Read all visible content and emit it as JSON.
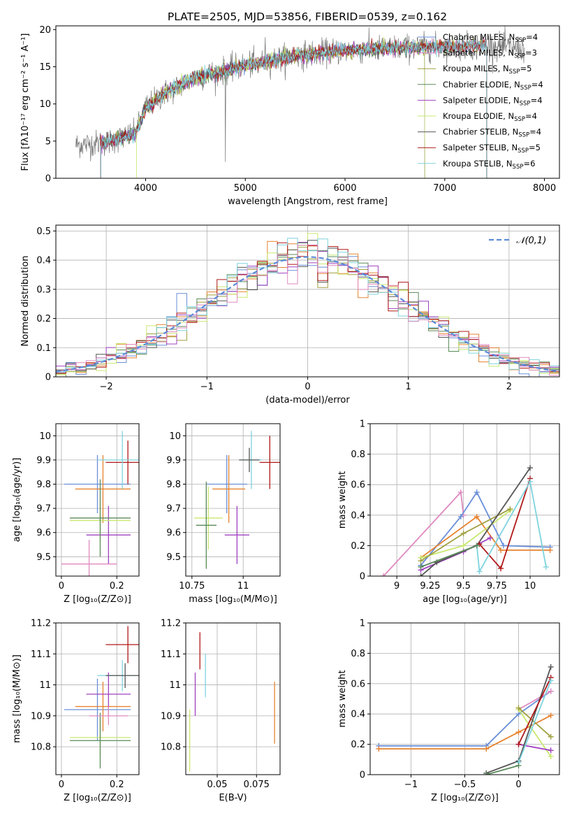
{
  "figure_title": "PLATE=2505, MJD=53856, FIBERID=0539, z=0.162",
  "model_colors": [
    "#6a8fd8",
    "#e68330",
    "#a0a040",
    "#5a8a5a",
    "#a040c0",
    "#c8e870",
    "#555555",
    "#b01818",
    "#7ed3de",
    "#e08ac0"
  ],
  "chart_data": [
    {
      "id": "spectrum",
      "type": "line",
      "title": "PLATE=2505, MJD=53856, FIBERID=0539, z=0.162",
      "xlabel": "wavelength [Angstrom, rest frame]",
      "ylabel": "Flux [fλ10⁻¹⁷ erg cm⁻² s⁻¹ A⁻¹]",
      "xlim": [
        3100,
        8150
      ],
      "ylim": [
        0,
        20.5
      ],
      "xticks": [
        4000,
        5000,
        6000,
        7000,
        8000
      ],
      "yticks": [
        0,
        5,
        10,
        15,
        20
      ],
      "legend_position": "right",
      "continuum": {
        "x": [
          3300,
          3600,
          3900,
          4000,
          4200,
          4500,
          5000,
          5500,
          6000,
          6500,
          7000,
          7400,
          7800
        ],
        "y": [
          4.5,
          4.8,
          6.0,
          9.5,
          11.5,
          13.5,
          15.2,
          16.5,
          17.2,
          17.5,
          17.7,
          17.8,
          17.5
        ]
      },
      "model_range": [
        3550,
        7420
      ],
      "series": [
        {
          "name": "Chabrier MILES, N",
          "sub": "SSP",
          "suffix": "=4",
          "color": "#6a8fd8"
        },
        {
          "name": "Salpeter MILES, N",
          "sub": "SSP",
          "suffix": "=3",
          "color": "#e08ac0"
        },
        {
          "name": "Kroupa MILES, N",
          "sub": "SSP",
          "suffix": "=5",
          "color": "#a0a040"
        },
        {
          "name": "Chabrier ELODIE, N",
          "sub": "SSP",
          "suffix": "=4",
          "color": "#5a8a5a"
        },
        {
          "name": "Salpeter ELODIE, N",
          "sub": "SSP",
          "suffix": "=4",
          "color": "#a040c0"
        },
        {
          "name": "Kroupa ELODIE, N",
          "sub": "SSP",
          "suffix": "=4",
          "color": "#c8e870"
        },
        {
          "name": "Chabrier STELIB, N",
          "sub": "SSP",
          "suffix": "=4",
          "color": "#555555"
        },
        {
          "name": "Salpeter STELIB, N",
          "sub": "SSP",
          "suffix": "=5",
          "color": "#b01818"
        },
        {
          "name": "Kroupa STELIB, N",
          "sub": "SSP",
          "suffix": "=6",
          "color": "#7ed3de"
        }
      ]
    },
    {
      "id": "residuals",
      "type": "line",
      "xlabel": "(data-model)/error",
      "ylabel": "Normed distribution",
      "xlim": [
        -2.5,
        2.5
      ],
      "ylim": [
        0,
        0.52
      ],
      "xticks": [
        -2,
        -1,
        0,
        1,
        2
      ],
      "yticks": [
        0.0,
        0.1,
        0.2,
        0.3,
        0.4,
        0.5
      ],
      "bin_width": 0.1,
      "grid": true,
      "legend": {
        "label": "𝒩(0,1)",
        "position": "top-right",
        "color": "#5b8bd8"
      }
    },
    {
      "id": "age_Z",
      "type": "scatter",
      "xlabel": "Z [log₁₀(Z/Z⊙)]",
      "ylabel": "age  [log₁₀(age/yr)]",
      "xlim": [
        -0.02,
        0.28
      ],
      "ylim": [
        9.42,
        10.05
      ],
      "xticks": [
        0.0,
        0.2
      ],
      "yticks": [
        9.5,
        9.6,
        9.7,
        9.8,
        9.9,
        10.0
      ],
      "grid": true,
      "points": [
        {
          "color": "#6a8fd8",
          "x": 0.13,
          "xerr": 0.12,
          "y": 9.8,
          "yerr": 0.12
        },
        {
          "color": "#e68330",
          "x": 0.15,
          "xerr": 0.1,
          "y": 9.78,
          "yerr": 0.14
        },
        {
          "color": "#b01818",
          "x": 0.24,
          "xerr": 0.08,
          "y": 9.89,
          "yerr": 0.09
        },
        {
          "color": "#7ed3de",
          "x": 0.22,
          "xerr": 0.09,
          "y": 9.9,
          "yerr": 0.12
        },
        {
          "color": "#a040c0",
          "x": 0.17,
          "xerr": 0.08,
          "y": 9.59,
          "yerr": 0.12
        },
        {
          "color": "#c8e870",
          "x": 0.14,
          "xerr": 0.11,
          "y": 9.65,
          "yerr": 0.09
        },
        {
          "color": "#5a8a5a",
          "x": 0.14,
          "xerr": 0.11,
          "y": 9.66,
          "yerr": 0.16
        },
        {
          "color": "#e08ac0",
          "x": 0.1,
          "xerr": 0.1,
          "y": 9.47,
          "yerr": 0.1
        }
      ]
    },
    {
      "id": "age_mass",
      "type": "scatter",
      "xlabel": "mass [log₁₀(M/M⊙)]",
      "ylabel": "",
      "xlim": [
        10.72,
        11.18
      ],
      "ylim": [
        9.42,
        10.05
      ],
      "xticks": [
        10.75,
        11.0
      ],
      "yticks": [
        9.5,
        9.6,
        9.7,
        9.8,
        9.9,
        10.0
      ],
      "grid": true,
      "points": [
        {
          "color": "#6a8fd8",
          "x": 10.92,
          "xerr": 0.1,
          "y": 9.8,
          "yerr": 0.12
        },
        {
          "color": "#e68330",
          "x": 10.93,
          "xerr": 0.08,
          "y": 9.78,
          "yerr": 0.14
        },
        {
          "color": "#b01818",
          "x": 11.13,
          "xerr": 0.05,
          "y": 9.89,
          "yerr": 0.11
        },
        {
          "color": "#7ed3de",
          "x": 11.04,
          "xerr": 0.05,
          "y": 9.9,
          "yerr": 0.12
        },
        {
          "color": "#a040c0",
          "x": 10.97,
          "xerr": 0.06,
          "y": 9.59,
          "yerr": 0.12
        },
        {
          "color": "#c8e870",
          "x": 10.83,
          "xerr": 0.07,
          "y": 9.66,
          "yerr": 0.13
        },
        {
          "color": "#5a8a5a",
          "x": 10.82,
          "xerr": 0.05,
          "y": 9.63,
          "yerr": 0.18
        },
        {
          "color": "#555555",
          "x": 11.03,
          "xerr": 0.05,
          "y": 9.9,
          "yerr": 0.05
        }
      ]
    },
    {
      "id": "weight_age",
      "type": "line",
      "xlabel": "age  [log₁₀(age/yr)]",
      "ylabel": "mass weight",
      "xlim": [
        8.8,
        10.22
      ],
      "ylim": [
        0,
        1.0
      ],
      "xticks": [
        9.0,
        9.25,
        9.5,
        9.75,
        10.0
      ],
      "yticks": [
        0.0,
        0.2,
        0.4,
        0.6,
        0.8,
        1.0
      ],
      "grid": true,
      "series": [
        {
          "color": "#e08ac0",
          "x": [
            8.9,
            9.48,
            9.5
          ],
          "y": [
            0.0,
            0.55,
            0.4
          ]
        },
        {
          "color": "#6a8fd8",
          "x": [
            9.18,
            9.48,
            9.6,
            9.8,
            10.15
          ],
          "y": [
            0.07,
            0.39,
            0.55,
            0.2,
            0.19
          ]
        },
        {
          "color": "#e68330",
          "x": [
            9.18,
            9.6,
            9.78,
            10.15
          ],
          "y": [
            0.12,
            0.39,
            0.17,
            0.17
          ]
        },
        {
          "color": "#c8e870",
          "x": [
            9.18,
            9.5,
            9.85
          ],
          "y": [
            0.12,
            0.2,
            0.43
          ]
        },
        {
          "color": "#a0a040",
          "x": [
            9.18,
            9.5,
            9.85
          ],
          "y": [
            0.1,
            0.28,
            0.44
          ]
        },
        {
          "color": "#a040c0",
          "x": [
            9.18,
            9.5,
            9.7
          ],
          "y": [
            0.04,
            0.16,
            0.25
          ]
        },
        {
          "color": "#555555",
          "x": [
            9.18,
            9.3,
            9.6,
            10.0
          ],
          "y": [
            0.0,
            0.09,
            0.2,
            0.71
          ]
        },
        {
          "color": "#b01818",
          "x": [
            9.62,
            9.78,
            10.0
          ],
          "y": [
            0.21,
            0.05,
            0.64
          ]
        },
        {
          "color": "#7ed3de",
          "x": [
            9.6,
            9.62,
            10.0,
            10.12
          ],
          "y": [
            0.2,
            0.03,
            0.62,
            0.06
          ]
        },
        {
          "color": "#5a8a5a",
          "x": [
            9.18,
            9.6
          ],
          "y": [
            0.06,
            0.2
          ]
        }
      ]
    },
    {
      "id": "mass_Z",
      "type": "scatter",
      "xlabel": "Z [log₁₀(Z/Z⊙)]",
      "ylabel": "mass [log₁₀(M/M⊙)]",
      "xlim": [
        -0.02,
        0.28
      ],
      "ylim": [
        10.71,
        11.2
      ],
      "xticks": [
        0.0,
        0.2
      ],
      "yticks": [
        10.8,
        10.9,
        11.0,
        11.1,
        11.2
      ],
      "grid": true,
      "points": [
        {
          "color": "#6a8fd8",
          "x": 0.13,
          "xerr": 0.12,
          "y": 10.92,
          "yerr": 0.1
        },
        {
          "color": "#e68330",
          "x": 0.15,
          "xerr": 0.1,
          "y": 10.93,
          "yerr": 0.08
        },
        {
          "color": "#b01818",
          "x": 0.24,
          "xerr": 0.08,
          "y": 11.13,
          "yerr": 0.06
        },
        {
          "color": "#7ed3de",
          "x": 0.22,
          "xerr": 0.09,
          "y": 11.03,
          "yerr": 0.05
        },
        {
          "color": "#a040c0",
          "x": 0.17,
          "xerr": 0.08,
          "y": 10.97,
          "yerr": 0.07
        },
        {
          "color": "#c8e870",
          "x": 0.14,
          "xerr": 0.11,
          "y": 10.83,
          "yerr": 0.06
        },
        {
          "color": "#5a8a5a",
          "x": 0.14,
          "xerr": 0.11,
          "y": 10.82,
          "yerr": 0.09
        },
        {
          "color": "#555555",
          "x": 0.23,
          "xerr": 0.07,
          "y": 11.03,
          "yerr": 0.04
        },
        {
          "color": "#e08ac0",
          "x": 0.17,
          "xerr": 0.07,
          "y": 10.9,
          "yerr": 0.03
        }
      ]
    },
    {
      "id": "mass_ebv",
      "type": "scatter",
      "xlabel": "E(B-V)",
      "ylabel": "",
      "xlim": [
        0.03,
        0.09
      ],
      "ylim": [
        10.71,
        11.2
      ],
      "xticks": [
        0.05,
        0.075
      ],
      "yticks": [
        10.8,
        10.9,
        11.0,
        11.1,
        11.2
      ],
      "grid": true,
      "points": [
        {
          "color": "#c8e870",
          "x": 0.0325,
          "xerr": 0,
          "y": 10.82,
          "yerr": 0.1
        },
        {
          "color": "#a040c0",
          "x": 0.036,
          "xerr": 0,
          "y": 10.97,
          "yerr": 0.07
        },
        {
          "color": "#b01818",
          "x": 0.039,
          "xerr": 0,
          "y": 11.11,
          "yerr": 0.06
        },
        {
          "color": "#7ed3de",
          "x": 0.0425,
          "xerr": 0,
          "y": 11.03,
          "yerr": 0.07
        },
        {
          "color": "#e68330",
          "x": 0.0865,
          "xerr": 0,
          "y": 10.91,
          "yerr": 0.1
        }
      ]
    },
    {
      "id": "weight_Z",
      "type": "line",
      "xlabel": "Z [log₁₀(Z/Z⊙)]",
      "ylabel": "mass weight",
      "xlim": [
        -1.38,
        0.38
      ],
      "ylim": [
        0,
        1.0
      ],
      "xticks": [
        -1.0,
        -0.5,
        0.0
      ],
      "yticks": [
        0.0,
        0.2,
        0.4,
        0.6,
        0.8,
        1.0
      ],
      "grid": true,
      "series": [
        {
          "color": "#6a8fd8",
          "x": [
            -1.3,
            -0.3,
            0.0,
            0.3
          ],
          "y": [
            0.19,
            0.19,
            0.4,
            0.55
          ]
        },
        {
          "color": "#e68330",
          "x": [
            -1.3,
            -0.3,
            0.0,
            0.3
          ],
          "y": [
            0.17,
            0.17,
            0.28,
            0.39
          ]
        },
        {
          "color": "#e08ac0",
          "x": [
            0.0,
            0.3
          ],
          "y": [
            0.43,
            0.55
          ]
        },
        {
          "color": "#c8e870",
          "x": [
            0.0,
            0.3
          ],
          "y": [
            0.43,
            0.12
          ]
        },
        {
          "color": "#a0a040",
          "x": [
            0.0,
            0.3
          ],
          "y": [
            0.44,
            0.25
          ]
        },
        {
          "color": "#a040c0",
          "x": [
            0.0,
            0.3
          ],
          "y": [
            0.2,
            0.16
          ]
        },
        {
          "color": "#555555",
          "x": [
            -0.3,
            0.0,
            0.3
          ],
          "y": [
            0.01,
            0.09,
            0.71
          ]
        },
        {
          "color": "#b01818",
          "x": [
            0.0,
            0.3
          ],
          "y": [
            0.2,
            0.64
          ]
        },
        {
          "color": "#7ed3de",
          "x": [
            0.0,
            0.3
          ],
          "y": [
            0.08,
            0.62
          ]
        },
        {
          "color": "#5a8a5a",
          "x": [
            -0.3,
            0.0
          ],
          "y": [
            0.0,
            0.06
          ]
        }
      ]
    }
  ]
}
